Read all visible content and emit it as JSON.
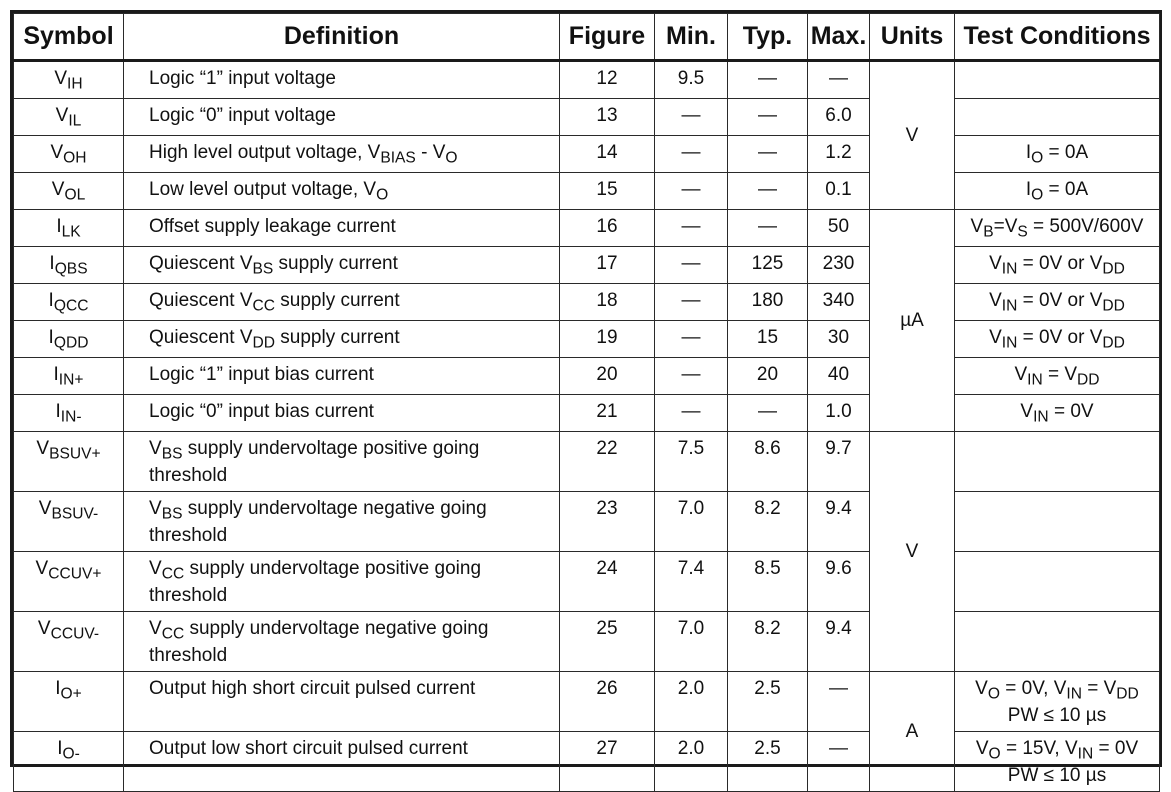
{
  "header": {
    "symbol": "Symbol",
    "definition": "Definition",
    "figure": "Figure",
    "min": "Min.",
    "typ": "Typ.",
    "max": "Max.",
    "units": "Units",
    "test_conditions": "Test Conditions"
  },
  "rows": [
    {
      "sym": "V",
      "sym_sub": "IH",
      "def": [
        "Logic “1” input voltage"
      ],
      "fig": "12",
      "min": "9.5",
      "typ": "—",
      "max": "—",
      "tc": []
    },
    {
      "sym": "V",
      "sym_sub": "IL",
      "def": [
        "Logic “0” input voltage"
      ],
      "fig": "13",
      "min": "—",
      "typ": "—",
      "max": "6.0",
      "tc": []
    },
    {
      "sym": "V",
      "sym_sub": "OH",
      "def": [
        "High level output voltage, V",
        {
          "sub": "BIAS"
        },
        " - V",
        {
          "sub": "O"
        }
      ],
      "fig": "14",
      "min": "—",
      "typ": "—",
      "max": "1.2",
      "tc": [
        "I",
        {
          "sub": "O"
        },
        " = 0A"
      ]
    },
    {
      "sym": "V",
      "sym_sub": "OL",
      "def": [
        "Low level output voltage, V",
        {
          "sub": "O"
        }
      ],
      "fig": "15",
      "min": "—",
      "typ": "—",
      "max": "0.1",
      "tc": [
        "I",
        {
          "sub": "O"
        },
        " = 0A"
      ]
    },
    {
      "sym": "I",
      "sym_sub": "LK",
      "def": [
        "Offset supply leakage current"
      ],
      "fig": "16",
      "min": "—",
      "typ": "—",
      "max": "50",
      "tc": [
        "V",
        {
          "sub": "B"
        },
        "=V",
        {
          "sub": "S"
        },
        " = 500V/600V"
      ]
    },
    {
      "sym": "I",
      "sym_sub": "QBS",
      "def": [
        "Quiescent V",
        {
          "sub": "BS"
        },
        " supply current"
      ],
      "fig": "17",
      "min": "—",
      "typ": "125",
      "max": "230",
      "tc": [
        "V",
        {
          "sub": "IN"
        },
        " = 0V or V",
        {
          "sub": "DD"
        }
      ]
    },
    {
      "sym": "I",
      "sym_sub": "QCC",
      "def": [
        "Quiescent V",
        {
          "sub": "CC"
        },
        " supply current"
      ],
      "fig": "18",
      "min": "—",
      "typ": "180",
      "max": "340",
      "tc": [
        "V",
        {
          "sub": "IN"
        },
        " = 0V or V",
        {
          "sub": "DD"
        }
      ]
    },
    {
      "sym": "I",
      "sym_sub": "QDD",
      "def": [
        "Quiescent V",
        {
          "sub": "DD"
        },
        " supply current"
      ],
      "fig": "19",
      "min": "—",
      "typ": "15",
      "max": "30",
      "tc": [
        "V",
        {
          "sub": "IN"
        },
        " = 0V or V",
        {
          "sub": "DD"
        }
      ]
    },
    {
      "sym": "I",
      "sym_sub": "IN+",
      "def": [
        "Logic “1” input bias current"
      ],
      "fig": "20",
      "min": "—",
      "typ": "20",
      "max": "40",
      "tc": [
        "V",
        {
          "sub": "IN"
        },
        " = V",
        {
          "sub": "DD"
        }
      ]
    },
    {
      "sym": "I",
      "sym_sub": "IN-",
      "def": [
        "Logic “0” input bias current"
      ],
      "fig": "21",
      "min": "—",
      "typ": "—",
      "max": "1.0",
      "tc": [
        "V",
        {
          "sub": "IN"
        },
        " = 0V"
      ]
    },
    {
      "sym": "V",
      "sym_sub": "BSUV+",
      "def": [
        "V",
        {
          "sub": "BS"
        },
        " supply undervoltage positive going threshold"
      ],
      "fig": "22",
      "min": "7.5",
      "typ": "8.6",
      "max": "9.7",
      "tc": []
    },
    {
      "sym": "V",
      "sym_sub": "BSUV-",
      "def": [
        "V",
        {
          "sub": "BS"
        },
        " supply undervoltage negative going threshold"
      ],
      "fig": "23",
      "min": "7.0",
      "typ": "8.2",
      "max": "9.4",
      "tc": []
    },
    {
      "sym": "V",
      "sym_sub": "CCUV+",
      "def": [
        "V",
        {
          "sub": "CC"
        },
        " supply undervoltage positive going threshold"
      ],
      "fig": "24",
      "min": "7.4",
      "typ": "8.5",
      "max": "9.6",
      "tc": []
    },
    {
      "sym": "V",
      "sym_sub": "CCUV-",
      "def": [
        "V",
        {
          "sub": "CC"
        },
        " supply undervoltage negative going threshold"
      ],
      "fig": "25",
      "min": "7.0",
      "typ": "8.2",
      "max": "9.4",
      "tc": []
    },
    {
      "sym": "I",
      "sym_sub": "O+",
      "def": [
        "Output high short circuit pulsed current"
      ],
      "fig": "26",
      "min": "2.0",
      "typ": "2.5",
      "max": "—",
      "tc": [
        "V",
        {
          "sub": "O"
        },
        " = 0V, V",
        {
          "sub": "IN"
        },
        " = V",
        {
          "sub": "DD"
        },
        {
          "br": true
        },
        "PW ≤ 10 µs"
      ]
    },
    {
      "sym": "I",
      "sym_sub": "O-",
      "def": [
        "Output low short circuit pulsed current"
      ],
      "fig": "27",
      "min": "2.0",
      "typ": "2.5",
      "max": "—",
      "tc": [
        "V",
        {
          "sub": "O"
        },
        " = 15V, V",
        {
          "sub": "IN"
        },
        " = 0V",
        {
          "br": true
        },
        "PW ≤ 10 µs"
      ]
    }
  ],
  "unit_groups": [
    {
      "label": "V",
      "start": 0,
      "span": 4
    },
    {
      "label": "µA",
      "start": 4,
      "span": 6
    },
    {
      "label": "V",
      "start": 10,
      "span": 4
    },
    {
      "label": "A",
      "start": 14,
      "span": 2
    }
  ]
}
